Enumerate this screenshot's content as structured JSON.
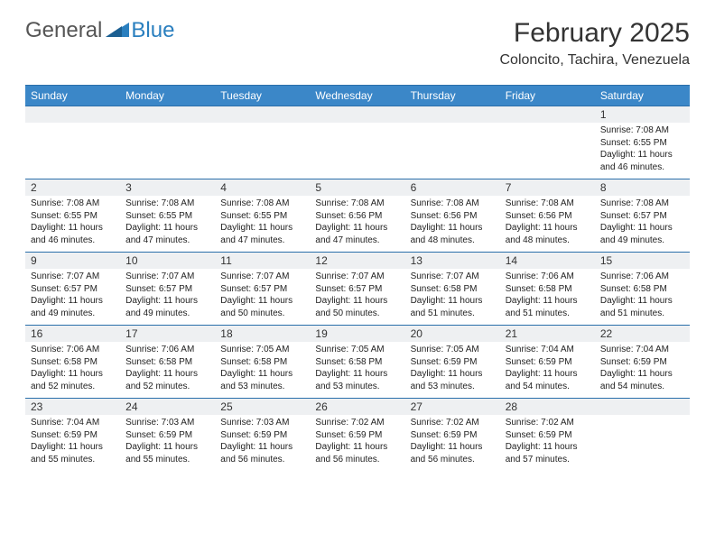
{
  "logo": {
    "general": "General",
    "blue": "Blue"
  },
  "title": "February 2025",
  "location": "Coloncito, Tachira, Venezuela",
  "colors": {
    "header_bg": "#3b87c8",
    "border": "#2a6faa",
    "daynum_bg": "#eef0f2",
    "logo_blue": "#2a7fbf",
    "text": "#333333"
  },
  "weekdays": [
    "Sunday",
    "Monday",
    "Tuesday",
    "Wednesday",
    "Thursday",
    "Friday",
    "Saturday"
  ],
  "weeks": [
    [
      {
        "num": "",
        "sunrise": "",
        "sunset": "",
        "daylight": ""
      },
      {
        "num": "",
        "sunrise": "",
        "sunset": "",
        "daylight": ""
      },
      {
        "num": "",
        "sunrise": "",
        "sunset": "",
        "daylight": ""
      },
      {
        "num": "",
        "sunrise": "",
        "sunset": "",
        "daylight": ""
      },
      {
        "num": "",
        "sunrise": "",
        "sunset": "",
        "daylight": ""
      },
      {
        "num": "",
        "sunrise": "",
        "sunset": "",
        "daylight": ""
      },
      {
        "num": "1",
        "sunrise": "Sunrise: 7:08 AM",
        "sunset": "Sunset: 6:55 PM",
        "daylight": "Daylight: 11 hours and 46 minutes."
      }
    ],
    [
      {
        "num": "2",
        "sunrise": "Sunrise: 7:08 AM",
        "sunset": "Sunset: 6:55 PM",
        "daylight": "Daylight: 11 hours and 46 minutes."
      },
      {
        "num": "3",
        "sunrise": "Sunrise: 7:08 AM",
        "sunset": "Sunset: 6:55 PM",
        "daylight": "Daylight: 11 hours and 47 minutes."
      },
      {
        "num": "4",
        "sunrise": "Sunrise: 7:08 AM",
        "sunset": "Sunset: 6:55 PM",
        "daylight": "Daylight: 11 hours and 47 minutes."
      },
      {
        "num": "5",
        "sunrise": "Sunrise: 7:08 AM",
        "sunset": "Sunset: 6:56 PM",
        "daylight": "Daylight: 11 hours and 47 minutes."
      },
      {
        "num": "6",
        "sunrise": "Sunrise: 7:08 AM",
        "sunset": "Sunset: 6:56 PM",
        "daylight": "Daylight: 11 hours and 48 minutes."
      },
      {
        "num": "7",
        "sunrise": "Sunrise: 7:08 AM",
        "sunset": "Sunset: 6:56 PM",
        "daylight": "Daylight: 11 hours and 48 minutes."
      },
      {
        "num": "8",
        "sunrise": "Sunrise: 7:08 AM",
        "sunset": "Sunset: 6:57 PM",
        "daylight": "Daylight: 11 hours and 49 minutes."
      }
    ],
    [
      {
        "num": "9",
        "sunrise": "Sunrise: 7:07 AM",
        "sunset": "Sunset: 6:57 PM",
        "daylight": "Daylight: 11 hours and 49 minutes."
      },
      {
        "num": "10",
        "sunrise": "Sunrise: 7:07 AM",
        "sunset": "Sunset: 6:57 PM",
        "daylight": "Daylight: 11 hours and 49 minutes."
      },
      {
        "num": "11",
        "sunrise": "Sunrise: 7:07 AM",
        "sunset": "Sunset: 6:57 PM",
        "daylight": "Daylight: 11 hours and 50 minutes."
      },
      {
        "num": "12",
        "sunrise": "Sunrise: 7:07 AM",
        "sunset": "Sunset: 6:57 PM",
        "daylight": "Daylight: 11 hours and 50 minutes."
      },
      {
        "num": "13",
        "sunrise": "Sunrise: 7:07 AM",
        "sunset": "Sunset: 6:58 PM",
        "daylight": "Daylight: 11 hours and 51 minutes."
      },
      {
        "num": "14",
        "sunrise": "Sunrise: 7:06 AM",
        "sunset": "Sunset: 6:58 PM",
        "daylight": "Daylight: 11 hours and 51 minutes."
      },
      {
        "num": "15",
        "sunrise": "Sunrise: 7:06 AM",
        "sunset": "Sunset: 6:58 PM",
        "daylight": "Daylight: 11 hours and 51 minutes."
      }
    ],
    [
      {
        "num": "16",
        "sunrise": "Sunrise: 7:06 AM",
        "sunset": "Sunset: 6:58 PM",
        "daylight": "Daylight: 11 hours and 52 minutes."
      },
      {
        "num": "17",
        "sunrise": "Sunrise: 7:06 AM",
        "sunset": "Sunset: 6:58 PM",
        "daylight": "Daylight: 11 hours and 52 minutes."
      },
      {
        "num": "18",
        "sunrise": "Sunrise: 7:05 AM",
        "sunset": "Sunset: 6:58 PM",
        "daylight": "Daylight: 11 hours and 53 minutes."
      },
      {
        "num": "19",
        "sunrise": "Sunrise: 7:05 AM",
        "sunset": "Sunset: 6:58 PM",
        "daylight": "Daylight: 11 hours and 53 minutes."
      },
      {
        "num": "20",
        "sunrise": "Sunrise: 7:05 AM",
        "sunset": "Sunset: 6:59 PM",
        "daylight": "Daylight: 11 hours and 53 minutes."
      },
      {
        "num": "21",
        "sunrise": "Sunrise: 7:04 AM",
        "sunset": "Sunset: 6:59 PM",
        "daylight": "Daylight: 11 hours and 54 minutes."
      },
      {
        "num": "22",
        "sunrise": "Sunrise: 7:04 AM",
        "sunset": "Sunset: 6:59 PM",
        "daylight": "Daylight: 11 hours and 54 minutes."
      }
    ],
    [
      {
        "num": "23",
        "sunrise": "Sunrise: 7:04 AM",
        "sunset": "Sunset: 6:59 PM",
        "daylight": "Daylight: 11 hours and 55 minutes."
      },
      {
        "num": "24",
        "sunrise": "Sunrise: 7:03 AM",
        "sunset": "Sunset: 6:59 PM",
        "daylight": "Daylight: 11 hours and 55 minutes."
      },
      {
        "num": "25",
        "sunrise": "Sunrise: 7:03 AM",
        "sunset": "Sunset: 6:59 PM",
        "daylight": "Daylight: 11 hours and 56 minutes."
      },
      {
        "num": "26",
        "sunrise": "Sunrise: 7:02 AM",
        "sunset": "Sunset: 6:59 PM",
        "daylight": "Daylight: 11 hours and 56 minutes."
      },
      {
        "num": "27",
        "sunrise": "Sunrise: 7:02 AM",
        "sunset": "Sunset: 6:59 PM",
        "daylight": "Daylight: 11 hours and 56 minutes."
      },
      {
        "num": "28",
        "sunrise": "Sunrise: 7:02 AM",
        "sunset": "Sunset: 6:59 PM",
        "daylight": "Daylight: 11 hours and 57 minutes."
      },
      {
        "num": "",
        "sunrise": "",
        "sunset": "",
        "daylight": ""
      }
    ]
  ]
}
